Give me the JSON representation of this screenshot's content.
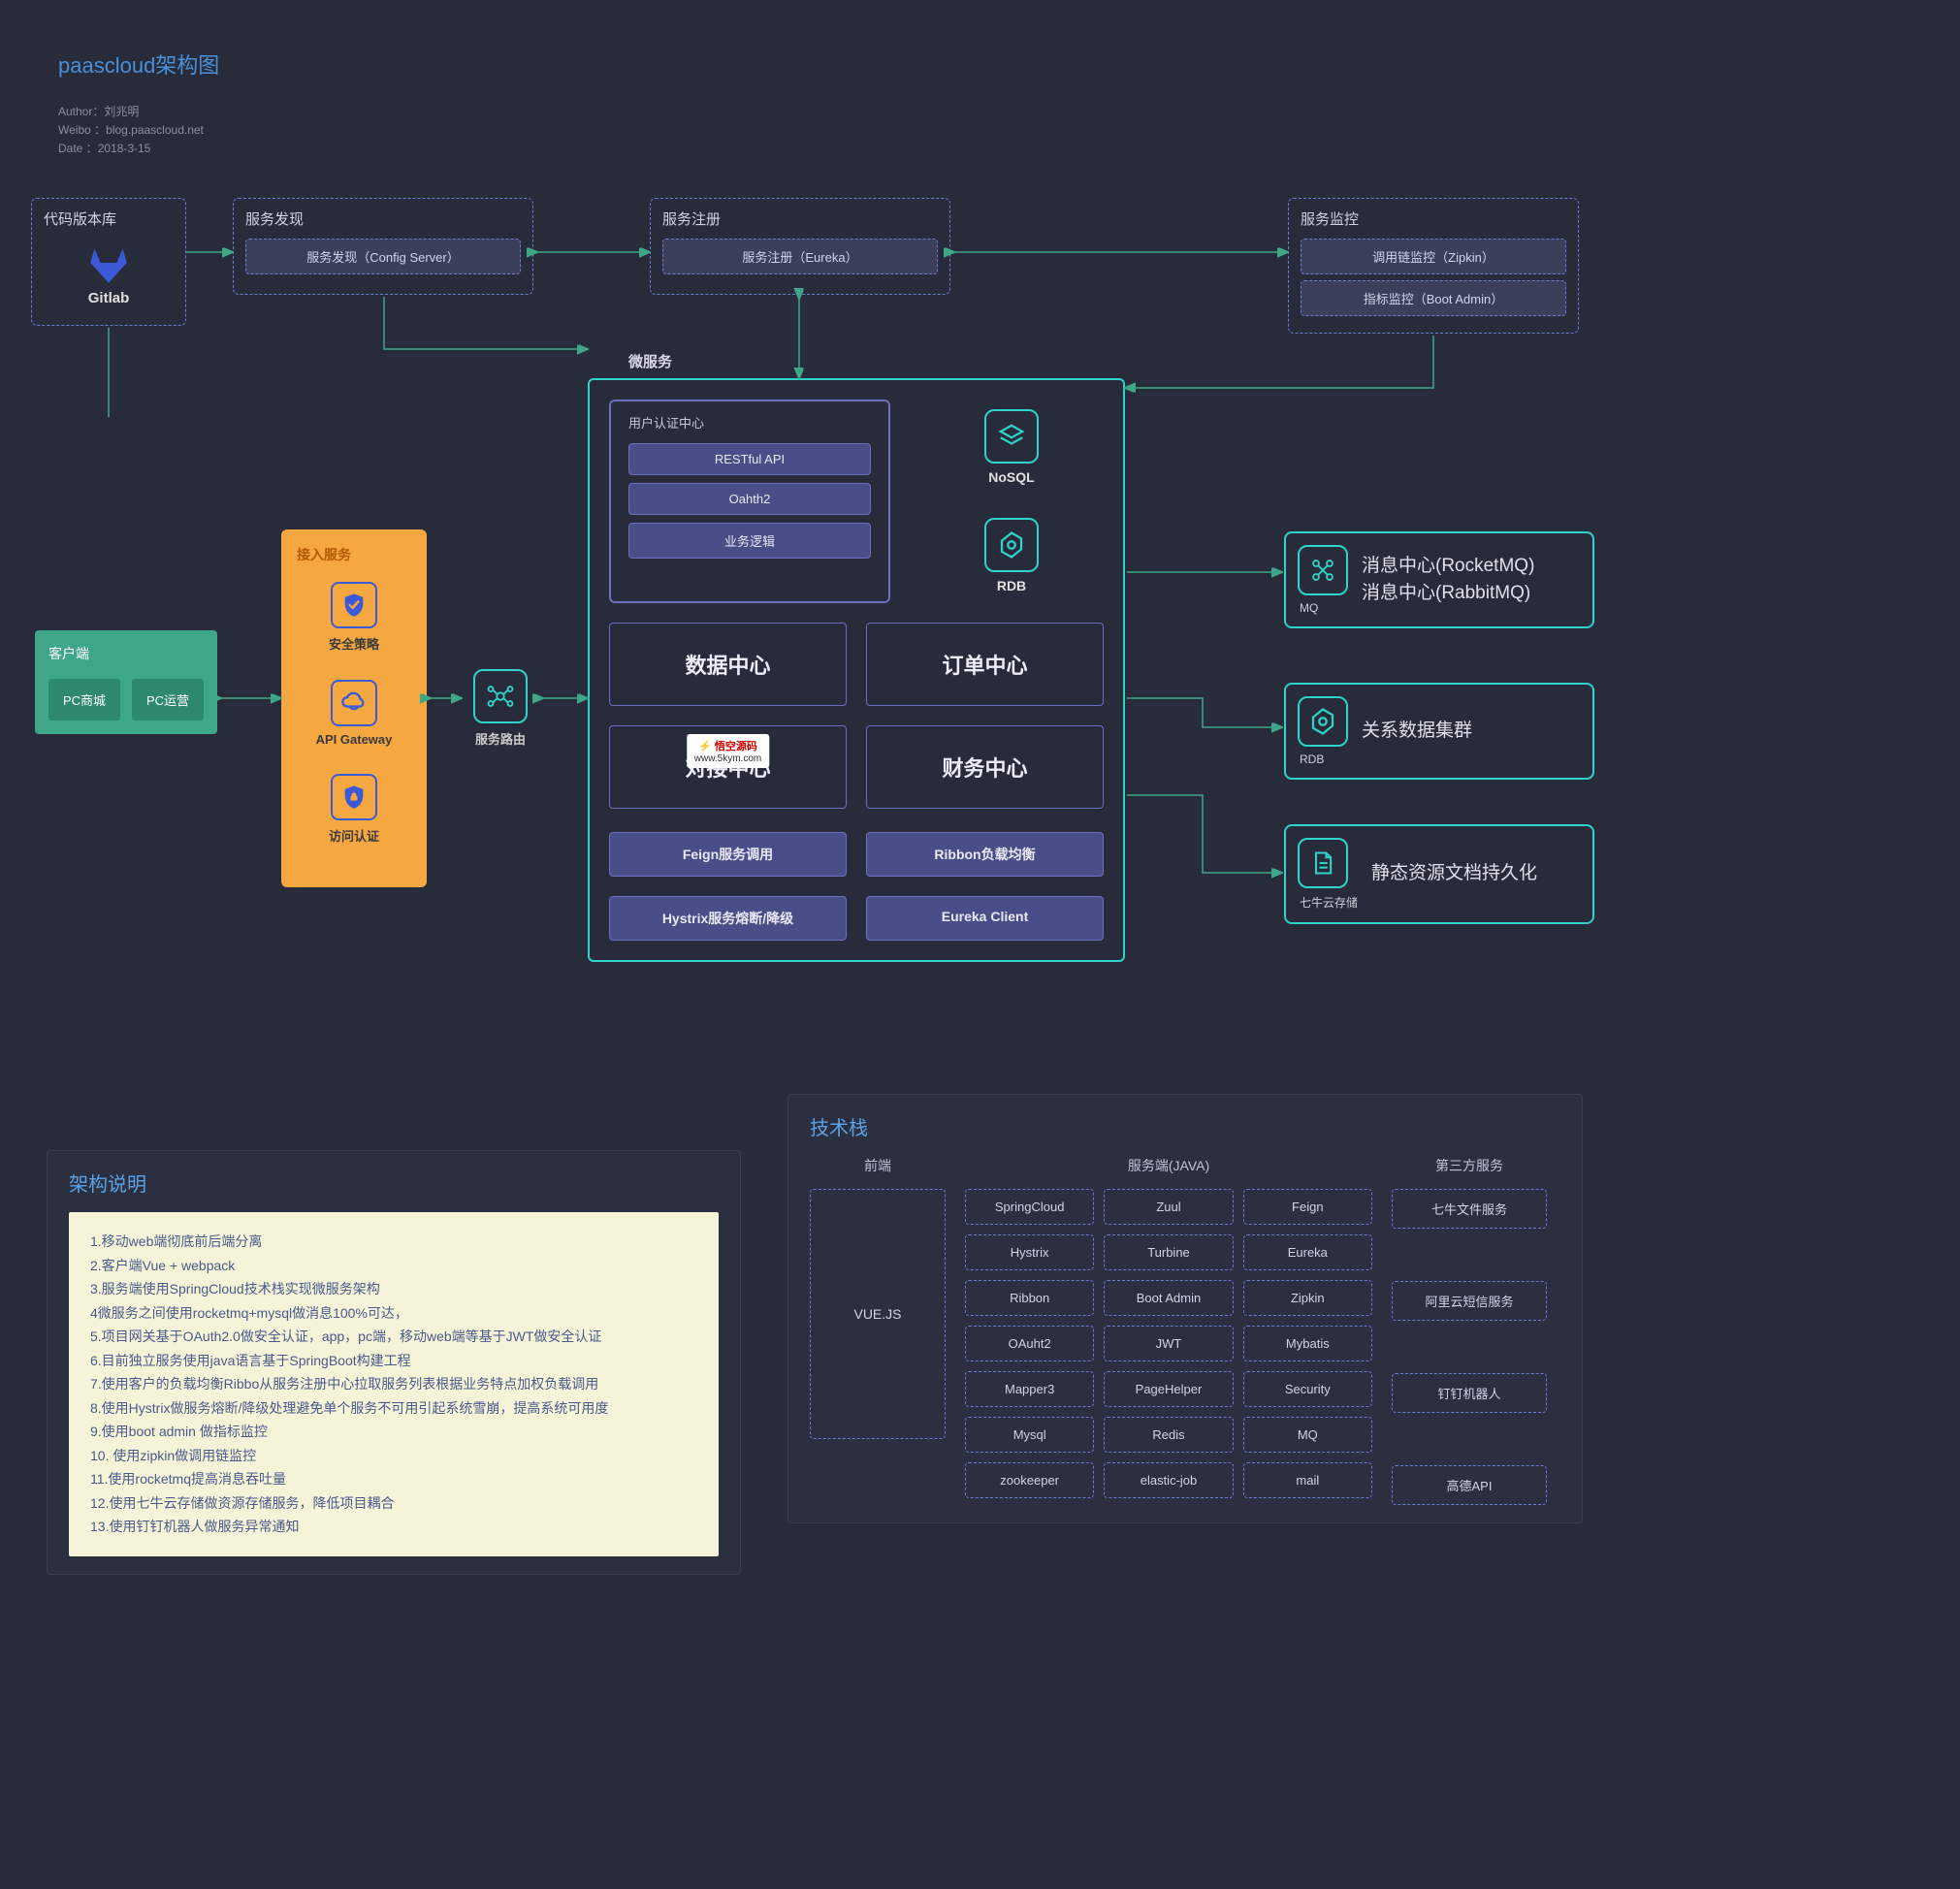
{
  "colors": {
    "bg": "#272b3a",
    "title": "#4a90d9",
    "dash_border": "#6b7bd6",
    "chip_bg": "#3b3f5a",
    "btn_bg": "#4a4e88",
    "teal": "#2fd3c8",
    "green_line": "#3fa787",
    "client_bg": "#3ea789",
    "client_cell": "#2d8a6f",
    "access_bg": "#f5a742",
    "access_icon": "#3b5bd6",
    "panel_bg": "#2b2f40",
    "desc_bg": "#f5f3d8",
    "desc_text": "#4a5a8a"
  },
  "header": {
    "title": "paascloud架构图",
    "author_label": "Author：",
    "author": "刘兆明",
    "weibo_label": "Weibo ：",
    "weibo": "blog.paascloud.net",
    "date_label": "Date    ：",
    "date": "2018-3-15"
  },
  "gitlab": {
    "title": "代码版本库",
    "label": "Gitlab"
  },
  "discovery": {
    "title": "服务发现",
    "label": "服务发现（Config Server）"
  },
  "registry": {
    "title": "服务注册",
    "label": "服务注册（Eureka）"
  },
  "monitor": {
    "title": "服务监控",
    "items": [
      "调用链监控（Zipkin）",
      "指标监控（Boot Admin）"
    ]
  },
  "client": {
    "title": "客户端",
    "items": [
      "PC商城",
      "PC运营"
    ]
  },
  "access": {
    "title": "接入服务",
    "items": [
      {
        "label": "安全策略",
        "icon": "shield-check"
      },
      {
        "label": "API Gateway",
        "icon": "cloud-route"
      },
      {
        "label": "访问认证",
        "icon": "shield-lock"
      }
    ]
  },
  "route": {
    "label": "服务路由",
    "icon": "network"
  },
  "micro": {
    "title": "微服务",
    "auth": {
      "title": "用户认证中心",
      "items": [
        "RESTful API",
        "Oahth2",
        "业务逻辑"
      ]
    },
    "dbs": [
      {
        "label": "NoSQL",
        "icon": "layers"
      },
      {
        "label": "RDB",
        "icon": "hex-db"
      }
    ],
    "centers": [
      "数据中心",
      "订单中心",
      "对接中心",
      "财务中心"
    ],
    "svc": [
      "Feign服务调用",
      "Ribbon负载均衡",
      "Hystrix服务熔断/降级",
      "Eureka Client"
    ]
  },
  "watermark": {
    "main": "悟空源码",
    "sub": "www.5kym.com"
  },
  "sides": [
    {
      "icon": "mq",
      "under": "MQ",
      "lines": [
        "消息中心(RocketMQ)",
        "消息中心(RabbitMQ)"
      ]
    },
    {
      "icon": "hex-db",
      "under": "RDB",
      "lines": [
        "关系数据集群"
      ]
    },
    {
      "icon": "doc",
      "under": "七牛云存储",
      "lines": [
        "静态资源文档持久化"
      ]
    }
  ],
  "desc": {
    "title": "架构说明",
    "lines": [
      "1.移动web端彻底前后端分离",
      "2.客户端Vue + webpack",
      "3.服务端使用SpringCloud技术栈实现微服务架构",
      "4微服务之间使用rocketmq+mysql做消息100%可达，",
      "5.项目网关基于OAuth2.0做安全认证，app，pc端，移动web端等基于JWT做安全认证",
      "6.目前独立服务使用java语言基于SpringBoot构建工程",
      "7.使用客户的负载均衡Ribbo从服务注册中心拉取服务列表根据业务特点加权负载调用",
      "8.使用Hystrix做服务熔断/降级处理避免单个服务不可用引起系统雪崩，提高系统可用度",
      "9.使用boot admin 做指标监控",
      "10. 使用zipkin做调用链监控",
      "11.使用rocketmq提高消息吞吐量",
      "12.使用七牛云存储做资源存储服务，降低项目耦合",
      "13.使用钉钉机器人做服务异常通知"
    ]
  },
  "stack": {
    "title": "技术栈",
    "front": {
      "title": "前端",
      "item": "VUE.JS"
    },
    "server": {
      "title": "服务端(JAVA)",
      "rows": [
        [
          "SpringCloud",
          "Zuul",
          "Feign"
        ],
        [
          "Hystrix",
          "Turbine",
          "Eureka"
        ],
        [
          "Ribbon",
          "Boot Admin",
          "Zipkin"
        ],
        [
          "OAuht2",
          "JWT",
          "Mybatis"
        ],
        [
          "Mapper3",
          "PageHelper",
          "Security"
        ],
        [
          "Mysql",
          "Redis",
          "MQ"
        ],
        [
          "zookeeper",
          "elastic-job",
          "mail"
        ]
      ]
    },
    "third": {
      "title": "第三方服务",
      "items": [
        "七牛文件服务",
        "阿里云短信服务",
        "钉钉机器人",
        "高德API"
      ]
    }
  }
}
